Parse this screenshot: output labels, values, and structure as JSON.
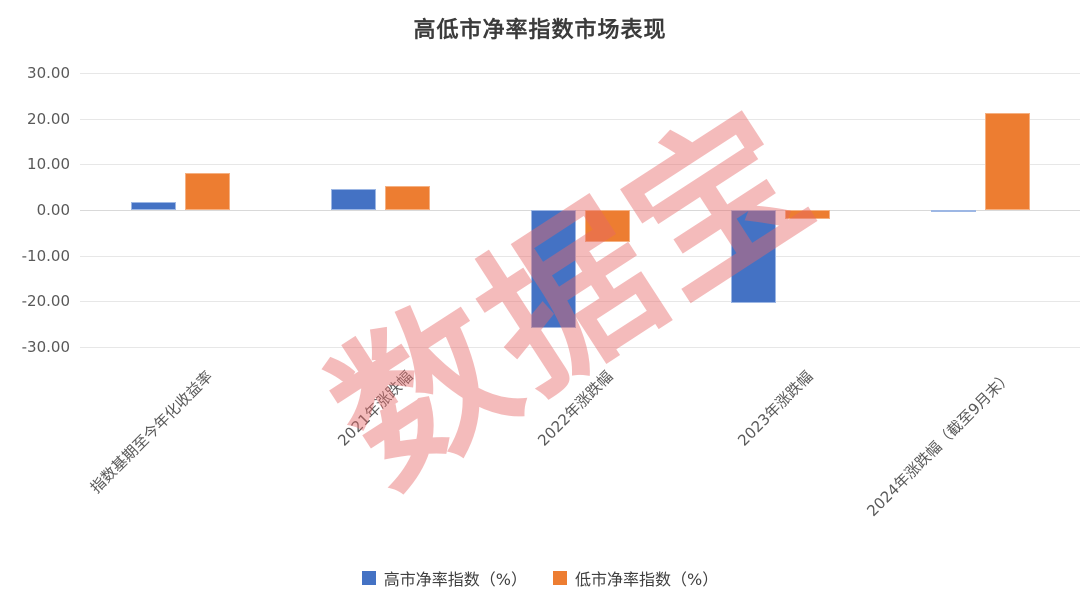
{
  "title": "高低市净率指数市场表现",
  "watermark": "数据宝",
  "chart_data": {
    "type": "bar",
    "categories": [
      "指数基期至今年化收益率",
      "2021年涨跌幅",
      "2022年涨跌幅",
      "2023年涨跌幅",
      "2024年涨跌幅（截至9月末）"
    ],
    "series": [
      {
        "name": "高市净率指数（%）",
        "color": "#4472C4",
        "border_color": "#9DB7E4",
        "values": [
          1.8,
          4.5,
          -25.9,
          -20.4,
          -0.5
        ]
      },
      {
        "name": "低市净率指数（%）",
        "color": "#ED7D31",
        "border_color": "#F5B183",
        "values": [
          8.2,
          5.3,
          -7.0,
          -2.0,
          21.3
        ]
      }
    ],
    "yticks": [
      30,
      20,
      10,
      0,
      -10,
      -20,
      -30
    ],
    "ytick_labels": [
      "30.00",
      "20.00",
      "10.00",
      "0.00",
      "-10.00",
      "-20.00",
      "-30.00"
    ],
    "ylim": [
      -30,
      30
    ],
    "grid": true,
    "legend_position": "bottom",
    "watermark_color": "#E66868"
  }
}
